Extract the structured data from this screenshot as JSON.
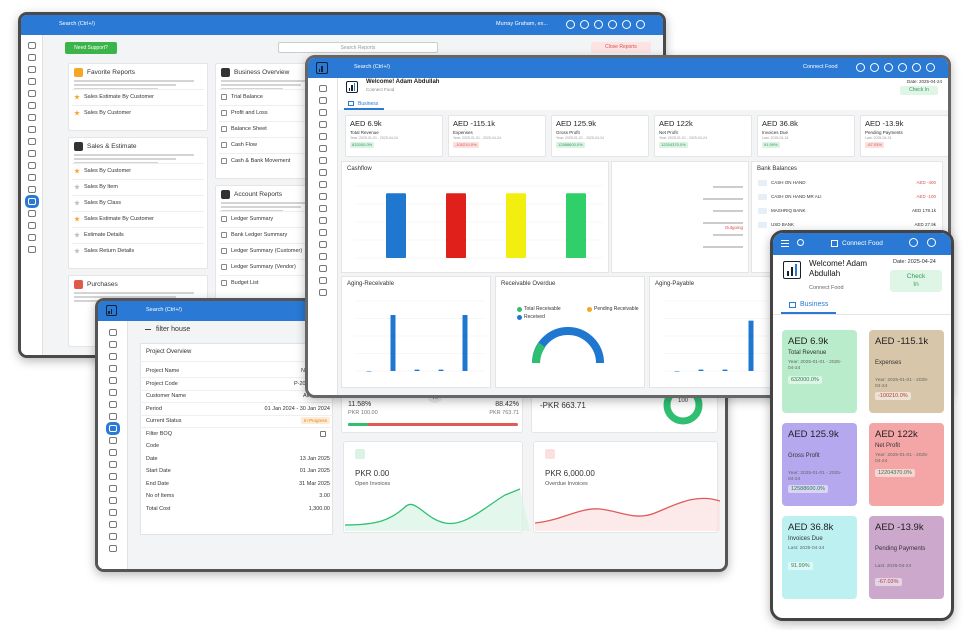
{
  "kpis": [
    {
      "value": "AED 6.9k",
      "label": "Total Revenue",
      "period": "Year: 2025-01-01 - 2025-04-24",
      "change": "632000.0%",
      "trend": "up",
      "color": "#b8eccb"
    },
    {
      "value": "AED -115.1k",
      "label": "Expenses",
      "period": "Year: 2025-01-01 - 2025-04-24",
      "change": "-100210.0%",
      "trend": "down",
      "color": "#d8c6aa"
    },
    {
      "value": "AED 125.9k",
      "label": "Gross Profit",
      "period": "Year: 2025-01-01 - 2025-04-24",
      "change": "12588600.0%",
      "trend": "up",
      "color": "#b5a8ef"
    },
    {
      "value": "AED 122k",
      "label": "Net Profit",
      "period": "Year: 2025-01-01 - 2025-04-24",
      "change": "12204370.0%",
      "trend": "up",
      "color": "#f4a6a6"
    },
    {
      "value": "AED 36.8k",
      "label": "Invoices Due",
      "period": "Last: 2025-04-24",
      "change": "91.99%",
      "trend": "up",
      "color": "#bdf1f1"
    },
    {
      "value": "AED -13.9k",
      "label": "Pending Payments",
      "period": "Last: 2025-04-24",
      "change": "-67.03%",
      "trend": "down",
      "color": "#cba8cc"
    }
  ],
  "reports_window": {
    "search": "Search (Ctrl+/)",
    "user": "Murray Graham, ex...",
    "need_support": "Need Support?",
    "search_reports": "Search Reports",
    "close_reports": "Close Reports",
    "columns": [
      [
        {
          "title": "Favorite Reports",
          "icon": "#f5a623",
          "items": [
            "Sales Estimate By Customer",
            "Sales By Customer"
          ],
          "starred": [
            0,
            1
          ]
        },
        {
          "title": "Sales & Estimate",
          "icon": "#333333",
          "items": [
            "Sales By Customer",
            "Sales By Item",
            "Sales By Class",
            "Sales Estimate By Customer",
            "Estimate Details",
            "Sales Return Details"
          ],
          "starred": [
            0,
            3
          ]
        },
        {
          "title": "Purchases",
          "icon": "#e05a47",
          "items": [],
          "starred": []
        }
      ],
      [
        {
          "title": "Business Overview",
          "icon": "#333333",
          "items": [
            "Trial Balance",
            "Profit and Loss",
            "Balance Sheet",
            "Cash Flow",
            "Cash & Bank Movement"
          ],
          "starred": []
        },
        {
          "title": "Account Reports",
          "icon": "#333333",
          "items": [
            "Ledger Summary",
            "Bank Ledger Summary",
            "Ledger Summary (Customer)",
            "Ledger Summary (Vendor)",
            "Budget List"
          ],
          "starred": []
        }
      ]
    ]
  },
  "dashboard": {
    "search": "Search (Ctrl+/)",
    "company": "Connect Food",
    "welcome": "Welcome! Adam Abdullah",
    "subtitle": "Connect Food",
    "date": "Date: 2025-04-24",
    "check_in": "Check In",
    "tab": "Business",
    "cashflow": {
      "type": "bar",
      "title": "Cashflow",
      "values": [
        90,
        90,
        90,
        90
      ],
      "colors": [
        "#1f77d0",
        "#e0201b",
        "#f2ee0f",
        "#2fcf6a"
      ],
      "ylim": [
        0,
        100
      ]
    },
    "outgoing_label": "Outgoing",
    "bank_balances": {
      "title": "Bank Balances",
      "rows": [
        {
          "name": "CASH ON HAND",
          "amount": "AED -400"
        },
        {
          "name": "CASH ON HAND MR ALI",
          "amount": "AED -100"
        },
        {
          "name": "MASHRIQ BANK",
          "amount": "AED 178.1k"
        },
        {
          "name": "USD BANK",
          "amount": "AED 27.9k"
        }
      ]
    },
    "aging_receivable": {
      "type": "bar",
      "title": "Aging-Receivable",
      "values": [
        0,
        80,
        2,
        2,
        80
      ],
      "color": "#1f77d0",
      "ylim": [
        0,
        100
      ]
    },
    "receivable_overdue": {
      "title": "Receivable Overdue",
      "legend": [
        {
          "name": "Total Receivable",
          "color": "#2fbf71"
        },
        {
          "name": "Pending Receivable",
          "color": "#f5a623"
        },
        {
          "name": "Received",
          "color": "#1f77d0"
        }
      ]
    },
    "aging_payable": {
      "type": "bar",
      "title": "Aging-Payable",
      "values": [
        0,
        2,
        2,
        72,
        0
      ],
      "color": "#1f77d0",
      "ylim": [
        0,
        100
      ]
    }
  },
  "project_window": {
    "search": "Search (Ctrl+/)",
    "back": "filter house",
    "title": "Project Overview",
    "fields": [
      {
        "label": "Project Name",
        "value": "Ni"
      },
      {
        "label": "Project Code",
        "value": "P-202"
      },
      {
        "label": "Customer Name",
        "value": "Ali Ea"
      },
      {
        "label": "Period",
        "value": "01 Jan 2024 - 30 Jan 2024"
      },
      {
        "label": "Current Status",
        "value": "In Progress"
      },
      {
        "label": "Filter BOQ"
      },
      {
        "label": "Code"
      },
      {
        "label": "Date",
        "value": "13 Jan 2025"
      },
      {
        "label": "Start Date",
        "value": "01 Jan 2025"
      },
      {
        "label": "End Date",
        "value": "31 Mar 2025"
      },
      {
        "label": "No of Items",
        "value": "3.00"
      },
      {
        "label": "Total Cost",
        "value": "1,300.00"
      }
    ],
    "received_pct": "11.58%",
    "received_amount": "PKR 100.00",
    "vs": "VS",
    "pending_pct": "88.42%",
    "pending_amount": "PKR 763.71",
    "balance": "-PKR 663.71",
    "gauge": "100",
    "open_amount": "PKR 0.00",
    "open_label": "Open Invoices",
    "overdue_amount": "PKR 6,000.00",
    "overdue_label": "Overdue Invoices"
  },
  "mobile": {
    "company": "Connect Food",
    "welcome": "Welcome!  Adam Abdullah",
    "subtitle": "Connect Food",
    "date": "Date: 2025-04-24",
    "check_in": "Check In",
    "tab": "Business"
  }
}
